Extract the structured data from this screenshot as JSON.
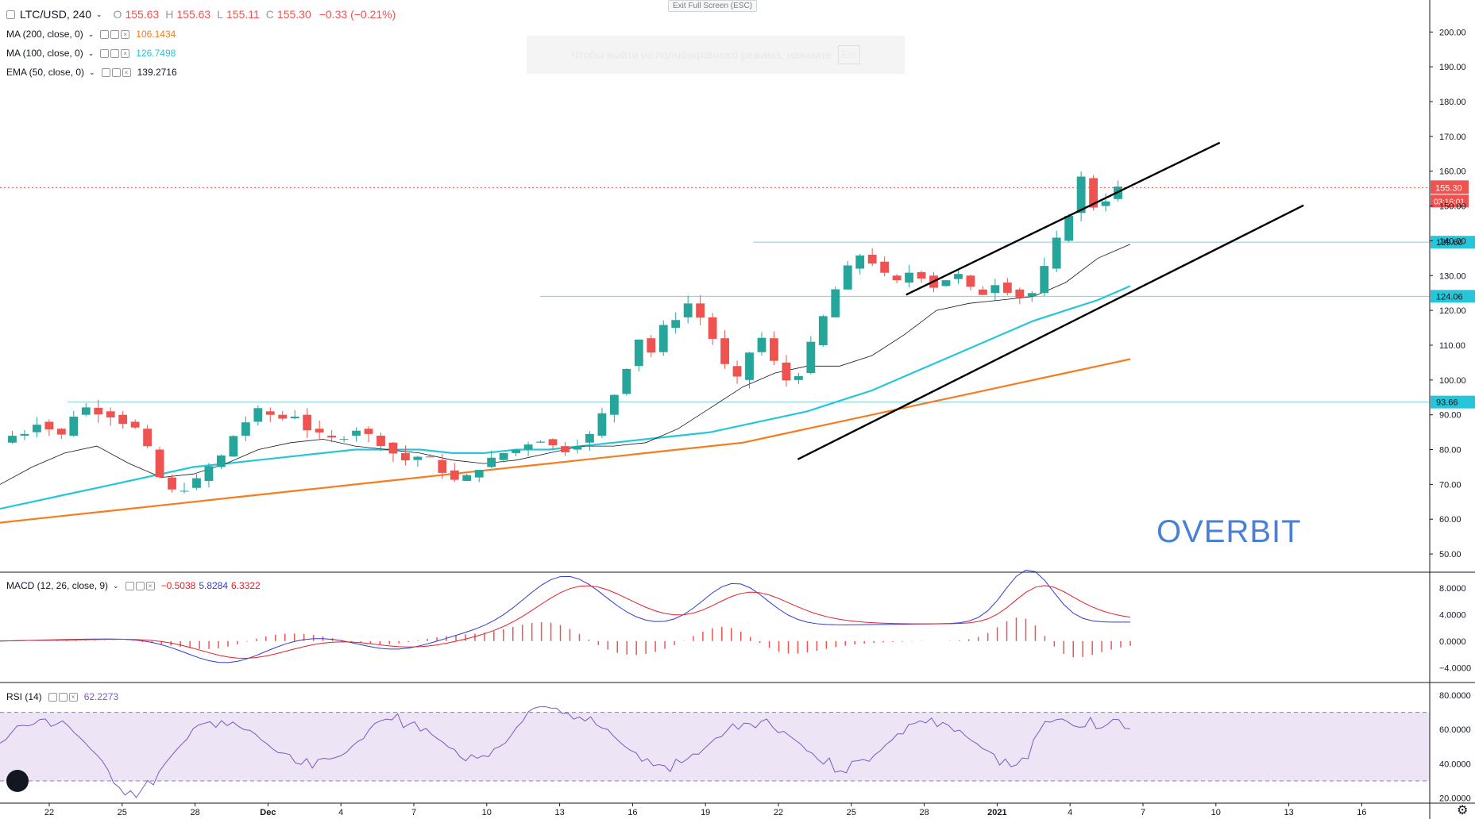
{
  "header": {
    "symbol": "LTC/USD, 240",
    "o_label": "O",
    "o_value": "155.63",
    "h_label": "H",
    "h_value": "155.63",
    "l_label": "L",
    "l_value": "155.11",
    "c_label": "C",
    "c_value": "155.30",
    "change": "−0.33 (−0.21%)"
  },
  "exit_fullscreen_label": "Exit Full Screen (ESC)",
  "toast": {
    "text": "Чтобы выйти из полноэкранного режима, нажмите",
    "key": "Esc"
  },
  "indicators": {
    "ma200": {
      "label": "MA (200, close, 0)",
      "value": "106.1434",
      "color": "#f57c1f"
    },
    "ma100": {
      "label": "MA (100, close, 0)",
      "value": "126.7498",
      "color": "#26c6da"
    },
    "ema50": {
      "label": "EMA (50, close, 0)",
      "value": "139.2716",
      "color": "#131722"
    },
    "macd": {
      "label": "MACD (12, 26, close, 9)",
      "hist": "−0.5038",
      "macd": "5.8284",
      "signal": "6.3322",
      "color_hist": "#e91e2a",
      "color_macd": "#2f3bd6",
      "color_signal": "#e91e2a"
    },
    "rsi": {
      "label": "RSI (14)",
      "value": "62.2273",
      "color": "#7e57c2"
    }
  },
  "watermark": "OVERBIT",
  "price_axis": {
    "ticks": [
      "200.00",
      "190.00",
      "180.00",
      "170.00",
      "160.00",
      "150.00",
      "140.00",
      "130.00",
      "120.00",
      "110.00",
      "100.00",
      "90.00",
      "80.00",
      "70.00",
      "60.00",
      "50.00"
    ],
    "last_price": "155.30",
    "countdown": "03:16:01",
    "levels": [
      "139.60",
      "124.06",
      "93.66"
    ]
  },
  "macd_axis": {
    "ticks": [
      "8.0000",
      "4.0000",
      "0.0000",
      "−4.0000"
    ]
  },
  "rsi_axis": {
    "ticks": [
      "80.0000",
      "60.0000",
      "40.0000",
      "20.0000"
    ]
  },
  "time_axis": {
    "labels": [
      "22",
      "25",
      "28",
      "Dec",
      "4",
      "7",
      "10",
      "13",
      "16",
      "19",
      "22",
      "25",
      "28",
      "2021",
      "4",
      "7",
      "10",
      "13",
      "16"
    ]
  },
  "chart_data": {
    "type": "candlestick",
    "symbol": "LTC/USD",
    "interval": "240",
    "ylim": [
      45,
      206
    ],
    "price_ticks": [
      200,
      190,
      180,
      170,
      160,
      150,
      140,
      130,
      120,
      110,
      100,
      90,
      80,
      70,
      60,
      50
    ],
    "last": 155.3,
    "horizontal_levels": [
      139.6,
      124.06,
      93.66
    ],
    "series": [
      {
        "name": "MA (200, close, 0)",
        "color": "#f57c1f",
        "values": [
          59,
          60,
          61,
          62,
          63,
          64,
          65,
          66,
          67,
          68,
          69,
          70,
          71,
          72,
          73,
          74,
          75,
          76,
          77,
          78,
          79,
          80,
          81,
          82,
          84,
          86,
          88,
          90,
          92,
          94,
          96,
          98,
          100,
          102,
          104,
          106
        ]
      },
      {
        "name": "MA (100, close, 0)",
        "color": "#26c6da",
        "values": [
          63,
          65,
          67,
          69,
          71,
          73,
          75,
          76,
          77,
          78,
          79,
          80,
          80,
          80,
          79,
          79,
          80,
          80,
          81,
          82,
          83,
          84,
          85,
          87,
          89,
          91,
          94,
          97,
          101,
          105,
          109,
          113,
          117,
          120,
          123,
          127
        ]
      },
      {
        "name": "EMA (50, close, 0)",
        "color": "#131722",
        "values": [
          70,
          75,
          79,
          81,
          76,
          72,
          73,
          76,
          80,
          82,
          83,
          81,
          80,
          79,
          77,
          76,
          77,
          79,
          81,
          81,
          82,
          86,
          92,
          98,
          102,
          104,
          104,
          107,
          113,
          120,
          122,
          123,
          124,
          128,
          135,
          139
        ]
      }
    ],
    "trendlines": {
      "upper": [
        [
          96.2,
          124.5
        ],
        [
          129.5,
          168.2
        ]
      ],
      "lower": [
        [
          84.7,
          77.2
        ],
        [
          138.4,
          150.2
        ]
      ]
    },
    "macd": {
      "ylim": [
        -6,
        10
      ],
      "ticks": [
        8,
        4,
        0,
        -4
      ],
      "last": {
        "hist": -0.5038,
        "macd": 5.8284,
        "signal": 6.3322
      }
    },
    "rsi": {
      "ylim": [
        18,
        86
      ],
      "ticks": [
        80,
        60,
        40,
        20
      ],
      "band": [
        30,
        70
      ],
      "last": 62.2273
    },
    "time_labels": [
      "22",
      "25",
      "28",
      "Dec",
      "4",
      "7",
      "10",
      "13",
      "16",
      "19",
      "22",
      "25",
      "28",
      "2021",
      "4",
      "7",
      "10",
      "13",
      "16"
    ]
  }
}
